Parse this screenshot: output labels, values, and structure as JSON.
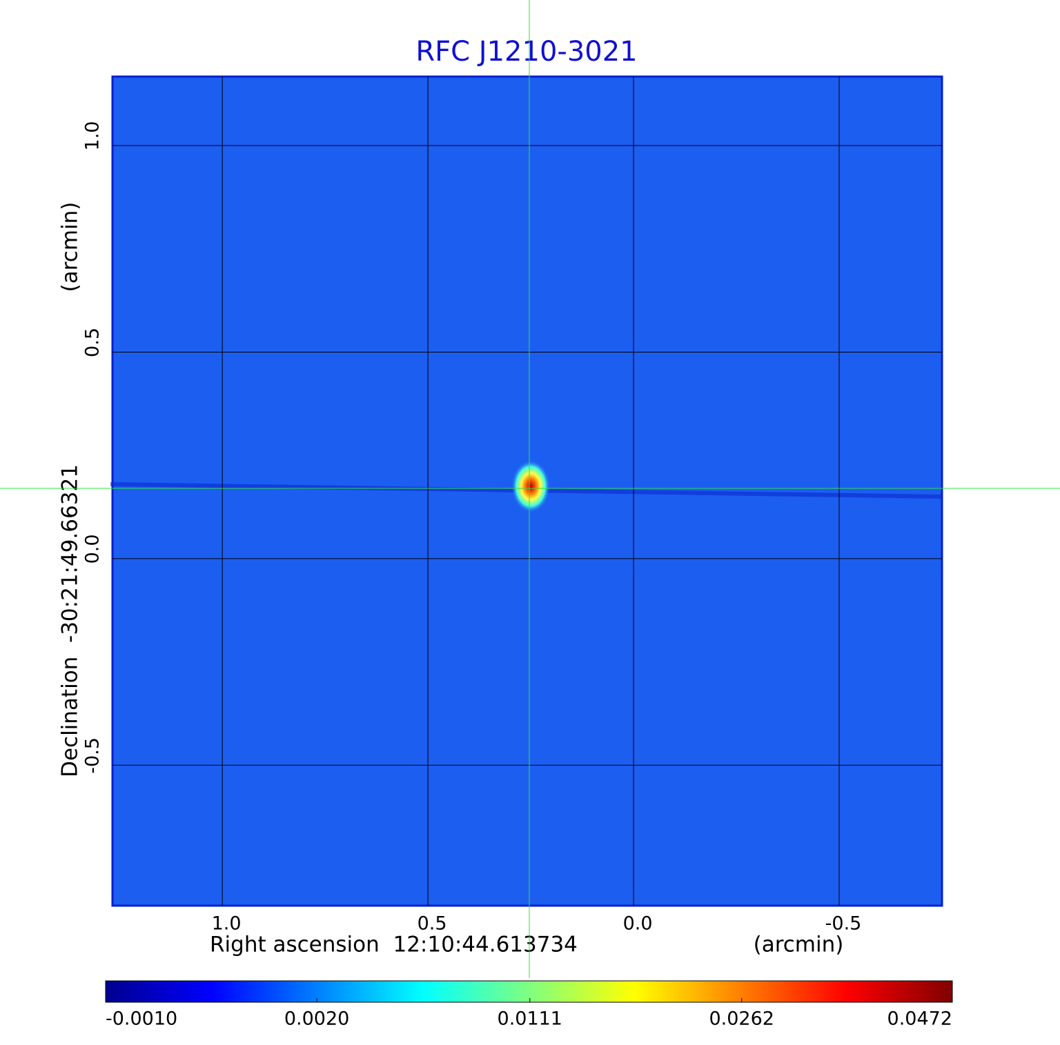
{
  "chart_data": {
    "type": "image",
    "title": "RFC J1210-3021",
    "x_label": "Right ascension  12:10:44.613734",
    "x_unit": "(arcmin)",
    "y_label": "Declination  -30:21:49.66321",
    "y_unit": "(arcmin)",
    "xlim": [
      1.267,
      -0.75
    ],
    "ylim": [
      -0.84,
      1.167
    ],
    "xticks": [
      {
        "value": 1,
        "label": "1.0"
      },
      0.5,
      {
        "value": 0,
        "label": "0.0"
      },
      -0.5
    ],
    "yticks": [
      {
        "value": 1,
        "label": "1.0"
      },
      0.5,
      {
        "value": 0,
        "label": "0.0"
      },
      -0.5
    ],
    "grid": true,
    "source": {
      "x": 0.25,
      "y": 0.175
    },
    "colorbar": {
      "scale": "sqrt",
      "clim": [
        -0.001,
        0.0472
      ],
      "ticks": [
        {
          "value": -0.001,
          "label": "-0.0010"
        },
        {
          "value": 0.002,
          "label": "0.0020"
        },
        {
          "value": 0.0111,
          "label": "0.0111"
        },
        {
          "value": 0.0262,
          "label": "0.0262"
        },
        {
          "value": 0.0472,
          "label": "0.0472"
        }
      ]
    }
  }
}
